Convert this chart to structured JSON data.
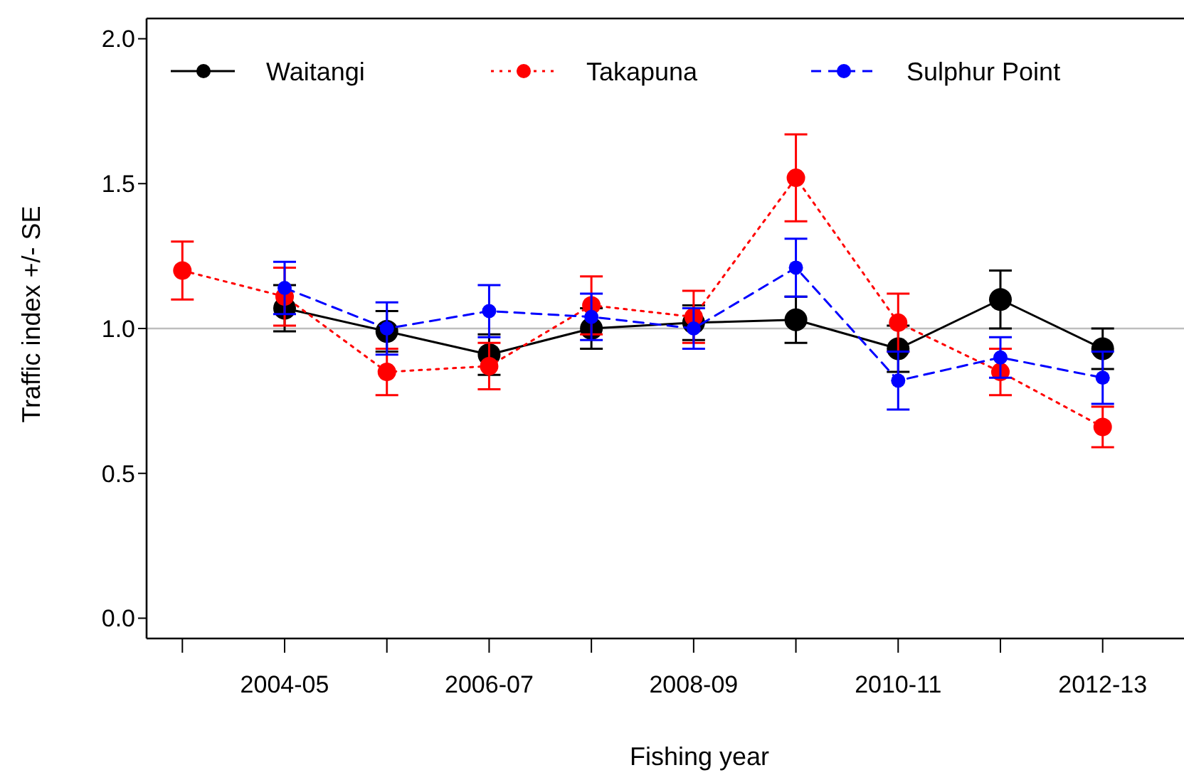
{
  "chart_data": {
    "type": "line",
    "xlabel": "Fishing year",
    "ylabel": "Traffic index +/- SE",
    "categories": [
      null,
      "2004-05",
      null,
      "2006-07",
      null,
      "2008-09",
      null,
      "2010-11",
      null,
      "2012-13"
    ],
    "ylim": [
      -0.07,
      2.07
    ],
    "yticks": [
      {
        "value": 0,
        "label": "0.0"
      },
      0.5,
      {
        "value": 1,
        "label": "1.0"
      },
      1.5,
      {
        "value": 2,
        "label": "2.0"
      }
    ],
    "grid": false,
    "legend": "top",
    "marker": "circle",
    "ref_lines": [
      {
        "axis": "y",
        "value": 1,
        "color": "#bebebe"
      }
    ],
    "series": [
      {
        "name": "Waitangi",
        "color": "#000000",
        "line_style": "solid",
        "values": [
          null,
          1.07,
          0.99,
          0.91,
          1.0,
          1.02,
          1.03,
          0.93,
          1.1,
          0.93
        ],
        "errors": [
          null,
          0.08,
          0.07,
          0.07,
          0.07,
          0.06,
          0.08,
          0.08,
          0.1,
          0.07
        ]
      },
      {
        "name": "Takapuna",
        "color": "#ff0000",
        "line_style": "dotted",
        "values": [
          1.2,
          1.11,
          0.85,
          0.87,
          1.08,
          1.04,
          1.52,
          1.02,
          0.85,
          0.66
        ],
        "errors": [
          0.1,
          0.1,
          0.08,
          0.08,
          0.1,
          0.09,
          0.15,
          0.1,
          0.08,
          0.07
        ]
      },
      {
        "name": "Sulphur Point",
        "color": "#0000ff",
        "line_style": "dashed",
        "values": [
          null,
          1.14,
          1.0,
          1.06,
          1.04,
          1.0,
          1.21,
          0.82,
          0.9,
          0.83
        ],
        "errors": [
          null,
          0.09,
          0.09,
          0.09,
          0.08,
          0.07,
          0.1,
          0.1,
          0.07,
          0.09
        ]
      }
    ]
  }
}
